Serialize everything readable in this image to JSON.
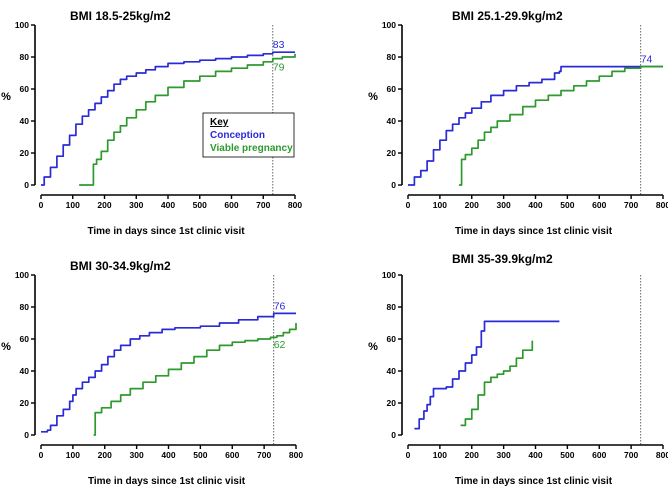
{
  "colors": {
    "conception": "#2b2bd6",
    "viable": "#2e9a2e",
    "axis": "#000000",
    "refline": "#555555"
  },
  "chart_data": [
    {
      "type": "line",
      "title": "BMI 18.5-25kg/m2",
      "xlabel": "Time in days since 1st clinic visit",
      "ylabel": "%",
      "xlim": [
        0,
        800
      ],
      "ylim": [
        0,
        100
      ],
      "xticks": [
        0,
        100,
        200,
        300,
        400,
        500,
        600,
        700,
        800
      ],
      "yticks": [
        0,
        20,
        40,
        60,
        80,
        100
      ],
      "reference_x": 730,
      "legend": {
        "title": "Key",
        "entries": [
          "Conception",
          "Viable pregnancy"
        ]
      },
      "series": [
        {
          "key": "conception",
          "x": [
            0,
            10,
            30,
            50,
            70,
            90,
            110,
            130,
            150,
            170,
            190,
            210,
            230,
            250,
            270,
            300,
            330,
            360,
            400,
            450,
            500,
            550,
            600,
            650,
            700,
            730,
            760,
            800
          ],
          "y": [
            0,
            5,
            11,
            18,
            25,
            31,
            38,
            43,
            47,
            51,
            55,
            59,
            63,
            66,
            68,
            70,
            72,
            74,
            76,
            77,
            78,
            79,
            80,
            81,
            82,
            83,
            83,
            83
          ]
        },
        {
          "key": "viable",
          "x": [
            120,
            165,
            165,
            175,
            190,
            210,
            230,
            250,
            270,
            300,
            330,
            360,
            400,
            450,
            500,
            550,
            600,
            650,
            700,
            730,
            760,
            800
          ],
          "y": [
            0,
            0,
            13,
            16,
            21,
            28,
            33,
            37,
            42,
            47,
            52,
            56,
            61,
            65,
            68,
            71,
            73,
            75,
            77,
            79,
            80,
            82
          ]
        }
      ],
      "annotations": [
        {
          "text": "83",
          "x": 730,
          "y": 83,
          "series": "conception"
        },
        {
          "text": "79",
          "x": 730,
          "y": 79,
          "series": "viable"
        }
      ]
    },
    {
      "type": "line",
      "title": "BMI 25.1-29.9kg/m2",
      "xlabel": "Time in days since 1st clinic visit",
      "ylabel": "%",
      "xlim": [
        0,
        800
      ],
      "ylim": [
        0,
        100
      ],
      "xticks": [
        0,
        100,
        200,
        300,
        400,
        500,
        600,
        700,
        800
      ],
      "yticks": [
        0,
        20,
        40,
        60,
        80,
        100
      ],
      "reference_x": 730,
      "series": [
        {
          "key": "conception",
          "x": [
            0,
            20,
            40,
            60,
            80,
            100,
            120,
            140,
            160,
            180,
            200,
            230,
            260,
            300,
            340,
            380,
            420,
            460,
            475,
            480,
            550,
            650,
            730,
            800
          ],
          "y": [
            0,
            5,
            9,
            15,
            22,
            28,
            34,
            38,
            42,
            45,
            48,
            52,
            56,
            59,
            62,
            64,
            66,
            70,
            71,
            74,
            74,
            74,
            74,
            74
          ]
        },
        {
          "key": "viable",
          "x": [
            160,
            168,
            168,
            180,
            200,
            220,
            240,
            260,
            280,
            320,
            360,
            400,
            440,
            480,
            520,
            560,
            600,
            640,
            680,
            730,
            800
          ],
          "y": [
            0,
            0,
            16,
            19,
            23,
            28,
            33,
            36,
            40,
            44,
            49,
            53,
            56,
            59,
            62,
            65,
            68,
            71,
            73,
            74,
            74
          ]
        }
      ],
      "annotations": [
        {
          "text": "74",
          "x": 730,
          "y": 74,
          "series": "conception"
        }
      ]
    },
    {
      "type": "line",
      "title": "BMI 30-34.9kg/m2",
      "xlabel": "Time in days since 1st clinic visit",
      "ylabel": "%",
      "xlim": [
        0,
        800
      ],
      "ylim": [
        0,
        100
      ],
      "xticks": [
        0,
        100,
        200,
        300,
        400,
        500,
        600,
        700,
        800
      ],
      "yticks": [
        0,
        20,
        40,
        60,
        80,
        100
      ],
      "reference_x": 730,
      "series": [
        {
          "key": "conception",
          "x": [
            0,
            20,
            30,
            50,
            70,
            90,
            100,
            110,
            130,
            150,
            170,
            190,
            210,
            230,
            250,
            280,
            310,
            340,
            380,
            420,
            460,
            500,
            560,
            620,
            680,
            730,
            760,
            800
          ],
          "y": [
            2,
            3,
            6,
            12,
            16,
            21,
            25,
            29,
            33,
            36,
            40,
            44,
            49,
            53,
            56,
            60,
            62,
            64,
            66,
            67,
            67,
            68,
            70,
            72,
            74,
            76,
            76,
            76
          ]
        },
        {
          "key": "viable",
          "x": [
            165,
            170,
            170,
            190,
            220,
            250,
            280,
            320,
            360,
            400,
            440,
            480,
            520,
            560,
            600,
            640,
            680,
            720,
            740,
            760,
            780,
            800
          ],
          "y": [
            0,
            0,
            14,
            17,
            21,
            25,
            29,
            33,
            37,
            41,
            45,
            49,
            53,
            56,
            58,
            59,
            60,
            61,
            62,
            64,
            66,
            70
          ]
        }
      ],
      "annotations": [
        {
          "text": "76",
          "x": 730,
          "y": 76,
          "series": "conception"
        },
        {
          "text": "62",
          "x": 730,
          "y": 62,
          "series": "viable"
        }
      ]
    },
    {
      "type": "line",
      "title": "BMI 35-39.9kg/m2",
      "xlabel": "Time in days since 1st clinic visit",
      "ylabel": "%",
      "xlim": [
        0,
        800
      ],
      "ylim": [
        0,
        100
      ],
      "xticks": [
        0,
        100,
        200,
        300,
        400,
        500,
        600,
        700,
        800
      ],
      "yticks": [
        0,
        20,
        40,
        60,
        80,
        100
      ],
      "reference_x": 730,
      "series": [
        {
          "key": "conception",
          "x": [
            20,
            35,
            50,
            60,
            70,
            80,
            120,
            140,
            160,
            180,
            200,
            215,
            230,
            240,
            300,
            360,
            420,
            475
          ],
          "y": [
            4,
            10,
            15,
            19,
            24,
            29,
            30,
            35,
            40,
            45,
            50,
            55,
            65,
            71,
            71,
            71,
            71,
            71
          ]
        },
        {
          "key": "viable",
          "x": [
            165,
            180,
            200,
            220,
            240,
            260,
            280,
            300,
            320,
            340,
            360,
            390
          ],
          "y": [
            6,
            10,
            16,
            25,
            33,
            36,
            38,
            40,
            43,
            48,
            53,
            59
          ]
        }
      ]
    }
  ]
}
